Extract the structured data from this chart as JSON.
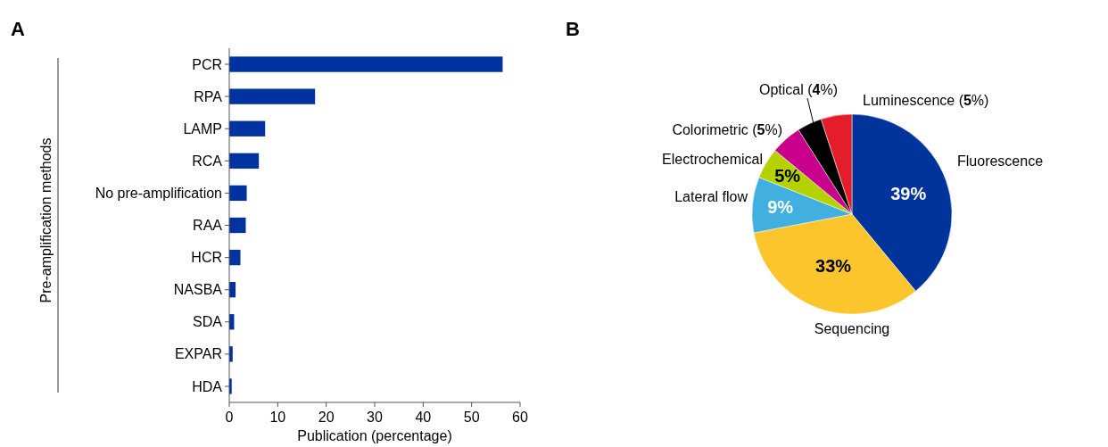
{
  "chart_data": [
    {
      "type": "bar",
      "title": "A",
      "orientation": "horizontal",
      "ylabel": "Pre-amplification methods",
      "xlabel": "Publication (percentage)",
      "categories": [
        "PCR",
        "RPA",
        "LAMP",
        "RCA",
        "No pre-amplification",
        "RAA",
        "HCR",
        "NASBA",
        "SDA",
        "EXPAR",
        "HDA"
      ],
      "values": [
        56.4,
        17.7,
        7.4,
        6.1,
        3.6,
        3.4,
        2.3,
        1.3,
        1.0,
        0.7,
        0.5
      ],
      "color": "#0033a0",
      "xlim": [
        0,
        60
      ],
      "xticks": [
        0,
        10,
        20,
        30,
        40,
        50,
        60
      ]
    },
    {
      "type": "pie",
      "title": "B",
      "categories": [
        "Fluorescence",
        "Sequencing",
        "Lateral flow",
        "Electrochemical",
        "Colorimetric",
        "Optical",
        "Luminescence"
      ],
      "values": [
        39,
        33,
        9,
        5,
        5,
        4,
        5
      ],
      "colors": [
        "#00349a",
        "#fbc52b",
        "#41b0e0",
        "#b5d200",
        "#c8008c",
        "#000000",
        "#e31e2a"
      ],
      "value_labels": [
        "39%",
        "33%",
        "9%",
        "5%",
        "(5%)",
        "(4%)",
        "(5%)"
      ]
    }
  ]
}
